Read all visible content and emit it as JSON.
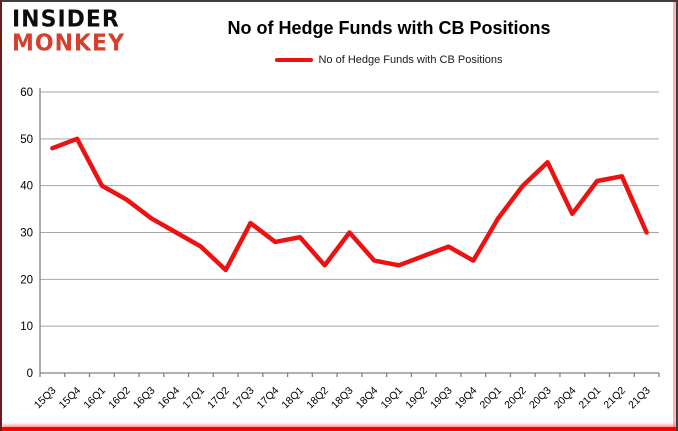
{
  "brand": {
    "line1": "INSIDER",
    "line2": "MONKEY"
  },
  "header": {
    "title": "No of Hedge Funds with CB Positions"
  },
  "legend": {
    "label": "No of Hedge Funds with CB Positions"
  },
  "colors": {
    "series": "#ee1111",
    "grid": "#a6a6a6",
    "axis": "#808080",
    "tick_label": "#000000",
    "brand_primary": "#0d0d0d",
    "brand_accent": "#d5402e",
    "bottom_rule": "#ff0000"
  },
  "chart_data": {
    "type": "line",
    "title": "No of Hedge Funds with CB Positions",
    "categories": [
      "15Q3",
      "15Q4",
      "16Q1",
      "16Q2",
      "16Q3",
      "16Q4",
      "17Q1",
      "17Q2",
      "17Q3",
      "17Q4",
      "18Q1",
      "18Q2",
      "18Q3",
      "18Q4",
      "19Q1",
      "19Q2",
      "19Q3",
      "19Q4",
      "20Q1",
      "20Q2",
      "20Q3",
      "20Q4",
      "21Q1",
      "21Q2",
      "21Q3"
    ],
    "series": [
      {
        "name": "No of Hedge Funds with CB Positions",
        "color": "#ee1111",
        "values": [
          48,
          50,
          40,
          37,
          33,
          30,
          27,
          22,
          32,
          28,
          29,
          23,
          30,
          24,
          23,
          25,
          27,
          24,
          33,
          40,
          45,
          34,
          41,
          42,
          30
        ]
      }
    ],
    "xlabel": "",
    "ylabel": "",
    "ylim": [
      0,
      60
    ],
    "ytick_step": 10,
    "grid": true,
    "legend_position": "top"
  }
}
